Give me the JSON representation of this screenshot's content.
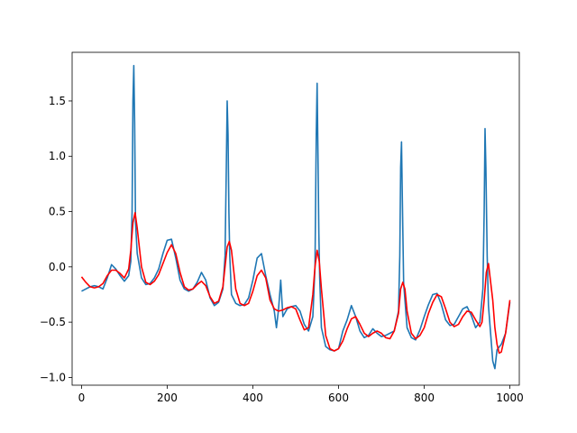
{
  "chart_data": {
    "type": "line",
    "title": "",
    "xlabel": "",
    "ylabel": "",
    "xlim": [
      -22,
      1022
    ],
    "ylim": [
      -1.07,
      1.94
    ],
    "grid": false,
    "legend": "none",
    "x_ticks": [
      0,
      200,
      400,
      600,
      800,
      1000
    ],
    "y_ticks": [
      -1.0,
      -0.5,
      0.0,
      0.5,
      1.0,
      1.5
    ],
    "x_tick_labels": [
      "0",
      "200",
      "400",
      "600",
      "800",
      "1000"
    ],
    "y_tick_labels": [
      "−1.0",
      "−0.5",
      "0.0",
      "0.5",
      "1.0",
      "1.5"
    ],
    "series": [
      {
        "color": "#1f77b4",
        "x": [
          0,
          10,
          20,
          30,
          40,
          50,
          60,
          70,
          80,
          90,
          100,
          110,
          115,
          118,
          120,
          122,
          124,
          126,
          130,
          140,
          150,
          160,
          170,
          180,
          190,
          200,
          210,
          220,
          230,
          240,
          250,
          260,
          270,
          280,
          290,
          300,
          310,
          320,
          330,
          335,
          338,
          340,
          342,
          344,
          346,
          350,
          360,
          370,
          380,
          390,
          400,
          410,
          420,
          430,
          440,
          450,
          455,
          460,
          465,
          470,
          480,
          490,
          500,
          510,
          520,
          530,
          540,
          545,
          548,
          550,
          552,
          554,
          556,
          560,
          570,
          580,
          590,
          600,
          610,
          620,
          630,
          640,
          650,
          660,
          670,
          680,
          690,
          700,
          710,
          720,
          730,
          740,
          743,
          745,
          747,
          749,
          752,
          760,
          770,
          780,
          790,
          800,
          810,
          820,
          830,
          840,
          850,
          860,
          870,
          880,
          890,
          900,
          910,
          920,
          930,
          937,
          940,
          942,
          944,
          947,
          950,
          955,
          960,
          965,
          970,
          980,
          990,
          1000
        ],
        "y": [
          -0.22,
          -0.2,
          -0.18,
          -0.17,
          -0.18,
          -0.2,
          -0.1,
          0.02,
          -0.02,
          -0.08,
          -0.13,
          -0.08,
          0.05,
          0.5,
          1.5,
          1.82,
          1.3,
          0.4,
          0.12,
          -0.1,
          -0.16,
          -0.15,
          -0.1,
          -0.02,
          0.12,
          0.24,
          0.25,
          0.08,
          -0.12,
          -0.2,
          -0.22,
          -0.2,
          -0.14,
          -0.05,
          -0.12,
          -0.28,
          -0.35,
          -0.32,
          -0.2,
          0.1,
          0.9,
          1.5,
          1.2,
          0.5,
          0.1,
          -0.25,
          -0.33,
          -0.35,
          -0.34,
          -0.28,
          -0.12,
          0.08,
          0.12,
          -0.08,
          -0.25,
          -0.4,
          -0.55,
          -0.38,
          -0.12,
          -0.45,
          -0.38,
          -0.36,
          -0.35,
          -0.4,
          -0.52,
          -0.58,
          -0.45,
          0.0,
          1.2,
          1.66,
          1.0,
          0.3,
          -0.1,
          -0.55,
          -0.72,
          -0.75,
          -0.76,
          -0.74,
          -0.58,
          -0.48,
          -0.35,
          -0.45,
          -0.58,
          -0.64,
          -0.62,
          -0.56,
          -0.6,
          -0.63,
          -0.62,
          -0.6,
          -0.58,
          -0.4,
          0.1,
          0.9,
          1.13,
          0.6,
          -0.15,
          -0.55,
          -0.64,
          -0.66,
          -0.57,
          -0.45,
          -0.34,
          -0.25,
          -0.24,
          -0.34,
          -0.48,
          -0.53,
          -0.52,
          -0.45,
          -0.38,
          -0.36,
          -0.44,
          -0.55,
          -0.5,
          -0.2,
          0.5,
          1.25,
          0.9,
          0.1,
          -0.35,
          -0.6,
          -0.85,
          -0.92,
          -0.75,
          -0.7,
          -0.6,
          -0.32
        ]
      },
      {
        "color": "#ff0000",
        "x": [
          0,
          10,
          20,
          30,
          40,
          50,
          60,
          70,
          80,
          90,
          100,
          110,
          115,
          120,
          125,
          130,
          140,
          150,
          160,
          170,
          180,
          190,
          200,
          210,
          220,
          230,
          240,
          250,
          260,
          270,
          280,
          290,
          300,
          310,
          320,
          330,
          335,
          340,
          345,
          350,
          360,
          370,
          380,
          390,
          400,
          410,
          420,
          430,
          440,
          450,
          460,
          470,
          480,
          490,
          500,
          510,
          520,
          530,
          540,
          545,
          550,
          555,
          560,
          570,
          580,
          590,
          600,
          610,
          620,
          630,
          640,
          650,
          660,
          670,
          680,
          690,
          700,
          710,
          720,
          730,
          740,
          745,
          750,
          755,
          760,
          770,
          780,
          790,
          800,
          810,
          820,
          830,
          840,
          850,
          860,
          870,
          880,
          890,
          900,
          910,
          920,
          930,
          935,
          940,
          945,
          950,
          960,
          965,
          970,
          975,
          980,
          990,
          1000
        ],
        "y": [
          -0.09,
          -0.14,
          -0.18,
          -0.19,
          -0.18,
          -0.15,
          -0.08,
          -0.03,
          -0.03,
          -0.06,
          -0.1,
          -0.02,
          0.15,
          0.4,
          0.49,
          0.35,
          0.0,
          -0.14,
          -0.16,
          -0.13,
          -0.07,
          0.03,
          0.13,
          0.2,
          0.12,
          -0.05,
          -0.18,
          -0.21,
          -0.2,
          -0.16,
          -0.13,
          -0.17,
          -0.27,
          -0.33,
          -0.31,
          -0.18,
          0.0,
          0.18,
          0.23,
          0.15,
          -0.2,
          -0.33,
          -0.35,
          -0.33,
          -0.22,
          -0.08,
          -0.03,
          -0.1,
          -0.3,
          -0.38,
          -0.4,
          -0.39,
          -0.37,
          -0.36,
          -0.38,
          -0.48,
          -0.57,
          -0.55,
          -0.25,
          0.0,
          0.15,
          0.05,
          -0.2,
          -0.62,
          -0.74,
          -0.76,
          -0.74,
          -0.67,
          -0.56,
          -0.47,
          -0.45,
          -0.52,
          -0.6,
          -0.63,
          -0.6,
          -0.58,
          -0.6,
          -0.64,
          -0.65,
          -0.58,
          -0.42,
          -0.2,
          -0.14,
          -0.2,
          -0.4,
          -0.6,
          -0.65,
          -0.62,
          -0.55,
          -0.42,
          -0.32,
          -0.25,
          -0.27,
          -0.38,
          -0.5,
          -0.54,
          -0.52,
          -0.45,
          -0.4,
          -0.41,
          -0.48,
          -0.54,
          -0.5,
          -0.3,
          -0.05,
          0.03,
          -0.3,
          -0.55,
          -0.7,
          -0.78,
          -0.77,
          -0.6,
          -0.3
        ]
      }
    ]
  }
}
